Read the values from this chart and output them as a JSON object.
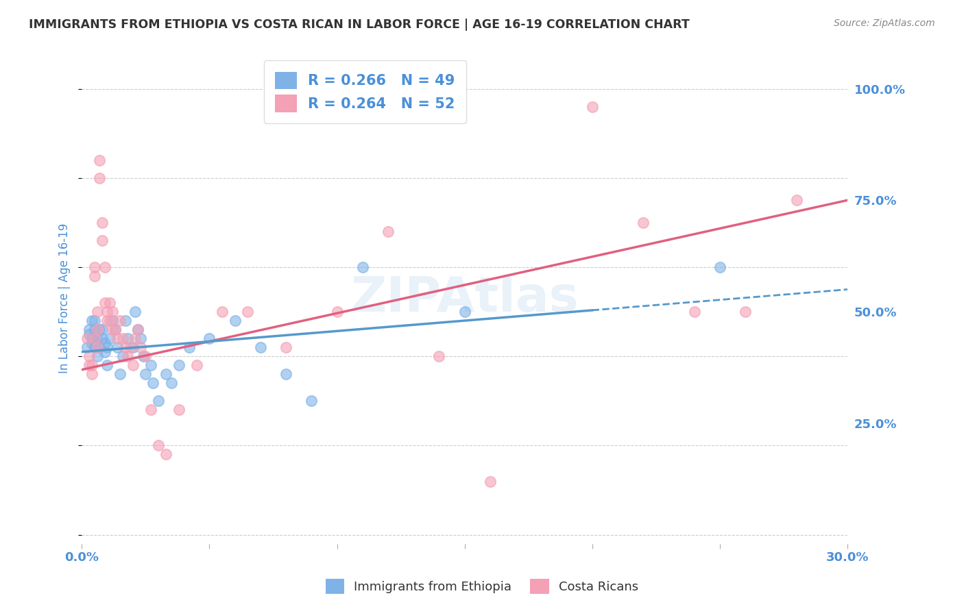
{
  "title": "IMMIGRANTS FROM ETHIOPIA VS COSTA RICAN IN LABOR FORCE | AGE 16-19 CORRELATION CHART",
  "source": "Source: ZipAtlas.com",
  "ylabel": "In Labor Force | Age 16-19",
  "ytick_labels": [
    "",
    "25.0%",
    "50.0%",
    "75.0%",
    "100.0%"
  ],
  "ytick_positions": [
    0.0,
    0.25,
    0.5,
    0.75,
    1.0
  ],
  "xmin": 0.0,
  "xmax": 0.3,
  "ymin": -0.02,
  "ymax": 1.08,
  "legend_label1": "Immigrants from Ethiopia",
  "legend_label2": "Costa Ricans",
  "color_ethiopia": "#7fb3e8",
  "color_costarica": "#f4a0b5",
  "trendline_ethiopia_color": "#5599cc",
  "trendline_costarica_color": "#e06080",
  "R_ethiopia": 0.266,
  "N_ethiopia": 49,
  "R_costarica": 0.264,
  "N_costarica": 52,
  "grid_color": "#cccccc",
  "background_color": "#ffffff",
  "title_color": "#333333",
  "axis_label_color": "#4a90d9",
  "tick_color": "#4a90d9",
  "legend_text_color": "#4a90d9",
  "ethiopia_scatter_x": [
    0.002,
    0.003,
    0.003,
    0.004,
    0.004,
    0.004,
    0.005,
    0.005,
    0.005,
    0.005,
    0.006,
    0.006,
    0.007,
    0.007,
    0.008,
    0.008,
    0.009,
    0.009,
    0.01,
    0.01,
    0.011,
    0.012,
    0.013,
    0.014,
    0.015,
    0.016,
    0.017,
    0.018,
    0.02,
    0.021,
    0.022,
    0.023,
    0.024,
    0.025,
    0.027,
    0.028,
    0.03,
    0.033,
    0.035,
    0.038,
    0.042,
    0.05,
    0.06,
    0.07,
    0.08,
    0.09,
    0.11,
    0.15,
    0.25
  ],
  "ethiopia_scatter_y": [
    0.42,
    0.45,
    0.46,
    0.43,
    0.44,
    0.48,
    0.42,
    0.44,
    0.46,
    0.48,
    0.4,
    0.44,
    0.42,
    0.46,
    0.44,
    0.46,
    0.41,
    0.43,
    0.38,
    0.42,
    0.44,
    0.48,
    0.46,
    0.42,
    0.36,
    0.4,
    0.48,
    0.44,
    0.42,
    0.5,
    0.46,
    0.44,
    0.4,
    0.36,
    0.38,
    0.34,
    0.3,
    0.36,
    0.34,
    0.38,
    0.42,
    0.44,
    0.48,
    0.42,
    0.36,
    0.3,
    0.6,
    0.5,
    0.6
  ],
  "costarica_scatter_x": [
    0.002,
    0.003,
    0.003,
    0.004,
    0.004,
    0.005,
    0.005,
    0.005,
    0.006,
    0.006,
    0.006,
    0.007,
    0.007,
    0.008,
    0.008,
    0.009,
    0.009,
    0.01,
    0.01,
    0.011,
    0.011,
    0.012,
    0.012,
    0.013,
    0.014,
    0.015,
    0.016,
    0.017,
    0.018,
    0.019,
    0.02,
    0.021,
    0.022,
    0.023,
    0.025,
    0.027,
    0.03,
    0.033,
    0.038,
    0.045,
    0.055,
    0.065,
    0.08,
    0.1,
    0.12,
    0.14,
    0.16,
    0.2,
    0.22,
    0.24,
    0.26,
    0.28
  ],
  "costarica_scatter_y": [
    0.44,
    0.38,
    0.4,
    0.36,
    0.38,
    0.6,
    0.58,
    0.44,
    0.42,
    0.46,
    0.5,
    0.8,
    0.84,
    0.7,
    0.66,
    0.6,
    0.52,
    0.48,
    0.5,
    0.52,
    0.48,
    0.46,
    0.5,
    0.46,
    0.44,
    0.48,
    0.44,
    0.42,
    0.4,
    0.42,
    0.38,
    0.44,
    0.46,
    0.42,
    0.4,
    0.28,
    0.2,
    0.18,
    0.28,
    0.38,
    0.5,
    0.5,
    0.42,
    0.5,
    0.68,
    0.4,
    0.12,
    0.96,
    0.7,
    0.5,
    0.5,
    0.75
  ],
  "trendline_cr_x0": 0.0,
  "trendline_cr_y0": 0.37,
  "trendline_cr_x1": 0.3,
  "trendline_cr_y1": 0.75,
  "trendline_eth_x0": 0.0,
  "trendline_eth_y0": 0.41,
  "trendline_eth_x1": 0.3,
  "trendline_eth_y1": 0.55
}
